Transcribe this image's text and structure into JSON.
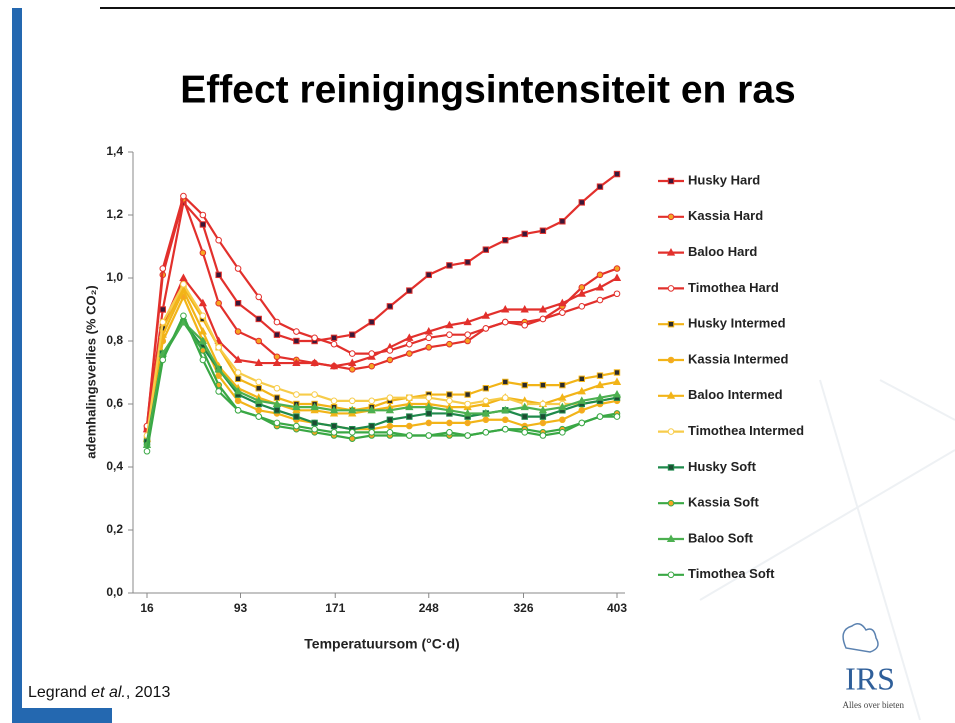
{
  "chart_data": {
    "type": "line",
    "title": "Effect reinigingsintensiteit en ras",
    "xlabel": "Temperatuursom (°C·d)",
    "ylabel": "ademhalingsverlies (% CO₂)",
    "x": [
      16,
      29,
      46,
      62,
      75,
      91,
      108,
      123,
      139,
      154,
      170,
      185,
      201,
      216,
      232,
      248,
      265,
      280,
      295,
      311,
      327,
      342,
      358,
      374,
      389,
      403
    ],
    "xlim": [
      16,
      403
    ],
    "xticks": [
      16,
      93,
      171,
      248,
      326,
      403
    ],
    "ylim": [
      0,
      1.4
    ],
    "yticks": [
      {
        "value": 0,
        "label": "0,0"
      },
      {
        "value": 0.2,
        "label": "0,2"
      },
      {
        "value": 0.4,
        "label": "0,4"
      },
      {
        "value": 0.6,
        "label": "0,6"
      },
      {
        "value": 0.8,
        "label": "0,8"
      },
      {
        "value": 1.0,
        "label": "1,0"
      },
      {
        "value": 1.2,
        "label": "1,2"
      },
      {
        "value": 1.4,
        "label": "1,4"
      }
    ],
    "grid": false,
    "legend": "right",
    "series": [
      {
        "name": "Husky Hard",
        "color": "#e2302c",
        "marker": "square",
        "marker_fill": "#3b1838",
        "values": [
          0.52,
          0.9,
          1.24,
          1.17,
          1.01,
          0.92,
          0.87,
          0.82,
          0.8,
          0.8,
          0.81,
          0.82,
          0.86,
          0.91,
          0.96,
          1.01,
          1.04,
          1.05,
          1.09,
          1.12,
          1.14,
          1.15,
          1.18,
          1.24,
          1.29,
          1.33
        ]
      },
      {
        "name": "Kassia Hard",
        "color": "#e2302c",
        "marker": "circle",
        "marker_fill": "#f5a623",
        "values": [
          0.53,
          1.01,
          1.25,
          1.08,
          0.92,
          0.83,
          0.8,
          0.75,
          0.74,
          0.73,
          0.72,
          0.71,
          0.72,
          0.74,
          0.76,
          0.78,
          0.79,
          0.8,
          0.84,
          0.86,
          0.86,
          0.87,
          0.91,
          0.97,
          1.01,
          1.03
        ]
      },
      {
        "name": "Baloo Hard",
        "color": "#e2302c",
        "marker": "triangle",
        "marker_fill": "#e2302c",
        "values": [
          0.52,
          0.85,
          1.0,
          0.92,
          0.8,
          0.74,
          0.73,
          0.73,
          0.73,
          0.73,
          0.72,
          0.73,
          0.75,
          0.78,
          0.81,
          0.83,
          0.85,
          0.86,
          0.88,
          0.9,
          0.9,
          0.9,
          0.92,
          0.95,
          0.97,
          1.0
        ]
      },
      {
        "name": "Timothea Hard",
        "color": "#e2302c",
        "marker": "circle",
        "marker_fill": "#ffffff",
        "values": [
          0.53,
          1.03,
          1.26,
          1.2,
          1.12,
          1.03,
          0.94,
          0.86,
          0.83,
          0.81,
          0.79,
          0.76,
          0.76,
          0.77,
          0.79,
          0.81,
          0.82,
          0.82,
          0.84,
          0.86,
          0.85,
          0.87,
          0.89,
          0.91,
          0.93,
          0.95
        ]
      },
      {
        "name": "Husky Intermed",
        "color": "#f2b418",
        "marker": "square",
        "marker_fill": "#2b2b2b",
        "values": [
          0.49,
          0.84,
          0.97,
          0.87,
          0.78,
          0.68,
          0.65,
          0.62,
          0.6,
          0.6,
          0.59,
          0.58,
          0.59,
          0.61,
          0.62,
          0.63,
          0.63,
          0.63,
          0.65,
          0.67,
          0.66,
          0.66,
          0.66,
          0.68,
          0.69,
          0.7
        ]
      },
      {
        "name": "Kassia Intermed",
        "color": "#f2b418",
        "marker": "circle",
        "marker_fill": "#f5a623",
        "values": [
          0.48,
          0.8,
          0.94,
          0.8,
          0.69,
          0.61,
          0.58,
          0.57,
          0.55,
          0.54,
          0.53,
          0.52,
          0.52,
          0.53,
          0.53,
          0.54,
          0.54,
          0.54,
          0.55,
          0.55,
          0.53,
          0.54,
          0.55,
          0.58,
          0.6,
          0.61
        ]
      },
      {
        "name": "Baloo Intermed",
        "color": "#f2b418",
        "marker": "triangle",
        "marker_fill": "#f2b418",
        "values": [
          0.49,
          0.82,
          0.96,
          0.83,
          0.72,
          0.65,
          0.62,
          0.6,
          0.58,
          0.58,
          0.57,
          0.57,
          0.58,
          0.59,
          0.6,
          0.6,
          0.59,
          0.59,
          0.6,
          0.62,
          0.61,
          0.6,
          0.62,
          0.64,
          0.66,
          0.67
        ]
      },
      {
        "name": "Timothea Intermed",
        "color": "#f7cc4a",
        "marker": "circle",
        "marker_fill": "#ffffff",
        "values": [
          0.5,
          0.86,
          0.98,
          0.88,
          0.78,
          0.7,
          0.67,
          0.65,
          0.63,
          0.63,
          0.61,
          0.61,
          0.61,
          0.62,
          0.62,
          0.62,
          0.61,
          0.6,
          0.61,
          0.62,
          0.6,
          0.6,
          0.6,
          0.6,
          0.61,
          0.62
        ]
      },
      {
        "name": "Husky Soft",
        "color": "#1f8a4c",
        "marker": "square",
        "marker_fill": "#1d4d33",
        "values": [
          0.48,
          0.76,
          0.86,
          0.78,
          0.71,
          0.63,
          0.6,
          0.58,
          0.56,
          0.54,
          0.53,
          0.52,
          0.53,
          0.55,
          0.56,
          0.57,
          0.57,
          0.56,
          0.57,
          0.58,
          0.56,
          0.56,
          0.58,
          0.6,
          0.61,
          0.62
        ]
      },
      {
        "name": "Kassia Soft",
        "color": "#3aa845",
        "marker": "circle",
        "marker_fill": "#f5a623",
        "values": [
          0.47,
          0.75,
          0.86,
          0.77,
          0.66,
          0.58,
          0.56,
          0.53,
          0.52,
          0.51,
          0.5,
          0.49,
          0.5,
          0.5,
          0.5,
          0.5,
          0.5,
          0.5,
          0.51,
          0.52,
          0.52,
          0.51,
          0.52,
          0.54,
          0.56,
          0.57
        ]
      },
      {
        "name": "Baloo Soft",
        "color": "#4cb050",
        "marker": "triangle",
        "marker_fill": "#4cb050",
        "values": [
          0.47,
          0.76,
          0.86,
          0.8,
          0.71,
          0.64,
          0.61,
          0.6,
          0.59,
          0.59,
          0.58,
          0.58,
          0.58,
          0.58,
          0.59,
          0.59,
          0.58,
          0.57,
          0.57,
          0.58,
          0.59,
          0.58,
          0.59,
          0.61,
          0.62,
          0.63
        ]
      },
      {
        "name": "Timothea Soft",
        "color": "#3aa845",
        "marker": "circle",
        "marker_fill": "#ffffff",
        "values": [
          0.45,
          0.74,
          0.88,
          0.74,
          0.64,
          0.58,
          0.56,
          0.54,
          0.53,
          0.52,
          0.51,
          0.51,
          0.51,
          0.51,
          0.5,
          0.5,
          0.51,
          0.5,
          0.51,
          0.52,
          0.51,
          0.5,
          0.51,
          0.54,
          0.56,
          0.56
        ]
      }
    ]
  },
  "source": {
    "author": "Legrand ",
    "etal": "et al.",
    "year": ", 2013"
  },
  "logo": {
    "text": "IRS",
    "tagline": "Alles over bieten"
  }
}
